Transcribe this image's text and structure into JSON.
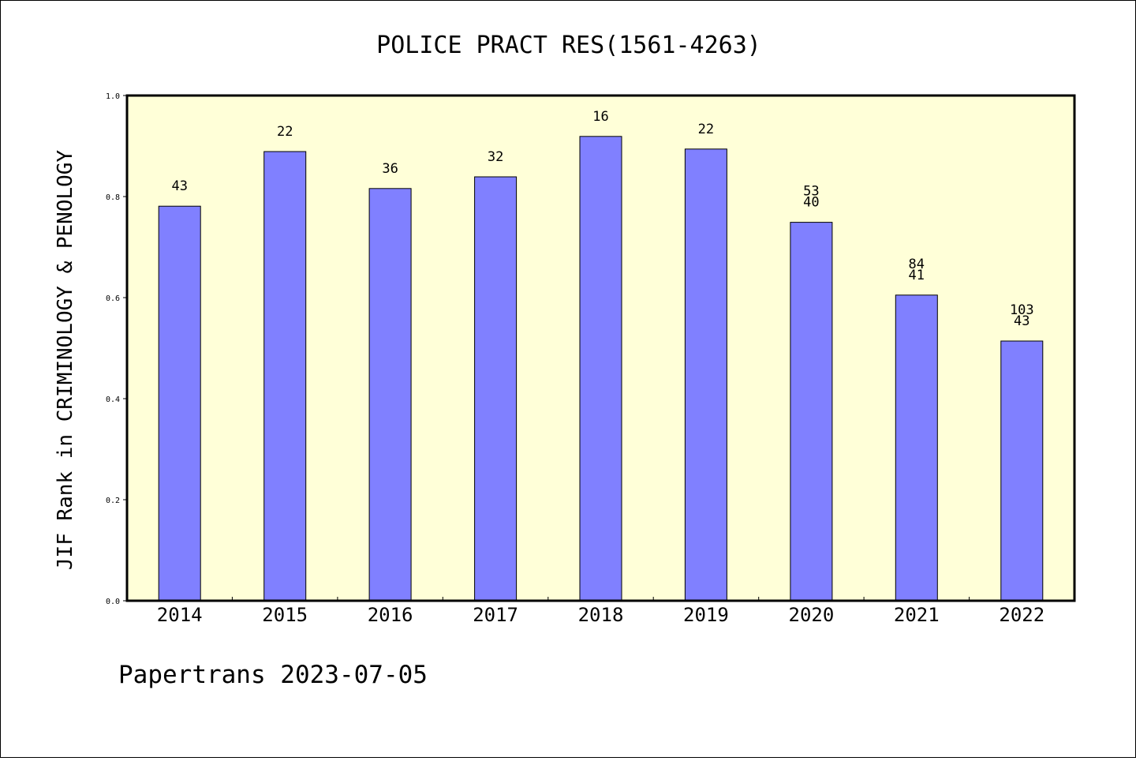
{
  "chart_data": {
    "type": "bar",
    "title": "POLICE PRACT RES(1561-4263)",
    "ylabel": "JIF Rank in CRIMINOLOGY & PENOLOGY",
    "xlabel": "",
    "categories": [
      "2014",
      "2015",
      "2016",
      "2017",
      "2018",
      "2019",
      "2020",
      "2021",
      "2022"
    ],
    "values": [
      0.781,
      0.889,
      0.816,
      0.839,
      0.919,
      0.894,
      0.749,
      0.605,
      0.514
    ],
    "bar_labels": [
      [
        "43"
      ],
      [
        "22"
      ],
      [
        "36"
      ],
      [
        "32"
      ],
      [
        "16"
      ],
      [
        "22"
      ],
      [
        "53",
        "40"
      ],
      [
        "84",
        "41"
      ],
      [
        "103",
        "43"
      ]
    ],
    "ylim": [
      0,
      1.0
    ],
    "yticks": [
      "0.0",
      "0.2",
      "0.4",
      "0.6",
      "0.8",
      "1.0"
    ],
    "grid": false,
    "legend": "none",
    "colors": {
      "plot_background": "#ffffd8",
      "bar_fill": "#8080ff",
      "bar_stroke": "#000000"
    }
  },
  "footer": {
    "text": "Papertrans 2023-07-05"
  }
}
